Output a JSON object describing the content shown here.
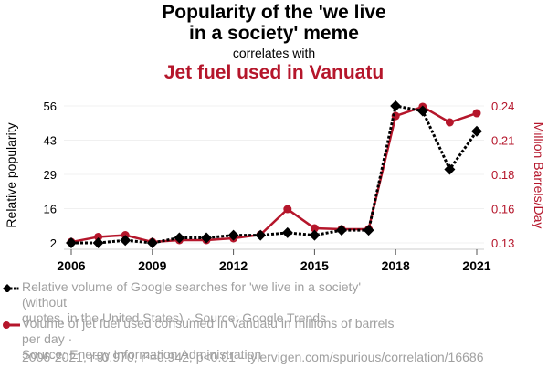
{
  "header": {
    "title": "Popularity of the 'we live in a society' meme",
    "subtitle": "correlates with",
    "title2": "Jet fuel used in Vanuatu"
  },
  "colors": {
    "series1": "#000000",
    "series2": "#b5162b",
    "legend_text": "#a0a0a0",
    "grid": "#f0f0f0"
  },
  "chart_data": {
    "type": "line",
    "title": "Popularity of the 'we live in a society' meme correlates with Jet fuel used in Vanuatu",
    "x": [
      2006,
      2007,
      2008,
      2009,
      2010,
      2011,
      2012,
      2013,
      2014,
      2015,
      2016,
      2017,
      2018,
      2019,
      2020,
      2021
    ],
    "xlabel": "",
    "x_ticks": [
      "2006",
      "2009",
      "2012",
      "2015",
      "2018",
      "2021"
    ],
    "xlim": [
      2006,
      2021
    ],
    "ylabel_left": "Relative popularity",
    "ylabel_right": "Million Barrels/Day",
    "y_left_ticks": [
      "2",
      "16",
      "29",
      "43",
      "56"
    ],
    "y_left_lim": [
      2,
      56
    ],
    "y_right_ticks": [
      "0.13",
      "0.16",
      "0.18",
      "0.21",
      "0.24"
    ],
    "y_right_lim": [
      0.13,
      0.24
    ],
    "grid": true,
    "legend_position": "bottom",
    "series": [
      {
        "name": "Relative volume of Google searches for 'we live in a society' (without quotes, in the United States) · Source: Google Trends",
        "axis": "left",
        "style": "dotted-diamond",
        "values": [
          2,
          2,
          3,
          2,
          4,
          4,
          5,
          5,
          6,
          5,
          7,
          7,
          56,
          54,
          31,
          46
        ]
      },
      {
        "name": "Volume of jet fuel used consumed in Vanuatu in millions of barrels per day · Source: Energy Information Administration",
        "axis": "right",
        "style": "solid-circle",
        "values": [
          0.1307,
          0.1348,
          0.1362,
          0.1307,
          0.1322,
          0.1322,
          0.1337,
          0.1366,
          0.1571,
          0.1417,
          0.141,
          0.141,
          0.2319,
          0.2393,
          0.2268,
          0.2341
        ]
      }
    ]
  },
  "legend": {
    "items": [
      {
        "line1": "Relative volume of Google searches for 'we live in a society' (without",
        "line2": "quotes, in the United States) · Source: Google Trends"
      },
      {
        "line1": "Volume of jet fuel used consumed in Vanuatu in millions of barrels per day ·",
        "line2": "Source: Energy Information Administration"
      }
    ]
  },
  "footer": {
    "stats": "2006-2021, r=0.970, r²=0.942, p<0.01 · tylervigen.com/spurious/correlation/16686"
  }
}
